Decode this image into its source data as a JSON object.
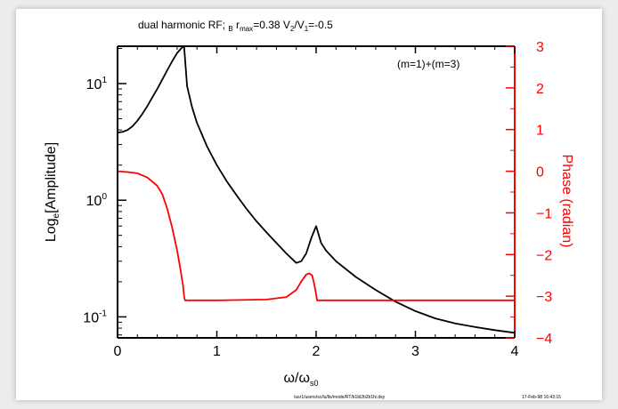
{
  "chart_data": {
    "type": "line",
    "title_parts": {
      "main": "dual harmonic RF; B",
      "main_sub": "B",
      "rmax": "r",
      "rmax_sub": "max",
      "rmax_value": "=0.38",
      "vratio_a": "V",
      "vratio_a_sub": "2",
      "vratio_b": "/V",
      "vratio_b_sub": "1",
      "vratio_value": "=-0.5"
    },
    "annotation": "(m=1)+(m=3)",
    "xlabel": "ω/ω",
    "xlabel_sub": "s0",
    "ylabel_left": "Log",
    "ylabel_left_sub": "e",
    "ylabel_left_rest": "[Amplitude]",
    "ylabel_right": "Phase (radian)",
    "footer_left": "/usr1/users/sc/lu/lls/mode/RT/b1bl2b2b1fz.dsy",
    "footer_right": "17-Feb-98 16:43:15",
    "xlim": [
      0,
      4
    ],
    "ylim_left_log10": [
      -1.18,
      1.32
    ],
    "ylim_right": [
      -4,
      3
    ],
    "x_ticks": [
      "0",
      "1",
      "2",
      "3",
      "4"
    ],
    "left_ticks": [
      {
        "base": "10",
        "exp": "1",
        "value": 10
      },
      {
        "base": "10",
        "exp": "0",
        "value": 1
      },
      {
        "base": "10",
        "exp": "-1",
        "value": 0.1
      }
    ],
    "right_ticks": [
      "3",
      "2",
      "1",
      "0",
      "-1",
      "-2",
      "-3",
      "-4"
    ],
    "series": [
      {
        "axis": "left",
        "color": "#000000",
        "x": [
          0,
          0.05,
          0.1,
          0.15,
          0.2,
          0.25,
          0.3,
          0.35,
          0.4,
          0.45,
          0.5,
          0.55,
          0.6,
          0.64,
          0.67,
          0.7,
          0.75,
          0.8,
          0.9,
          1.0,
          1.1,
          1.2,
          1.3,
          1.4,
          1.5,
          1.6,
          1.7,
          1.8,
          1.85,
          1.9,
          1.95,
          1.97,
          2.0,
          2.05,
          2.1,
          2.2,
          2.4,
          2.6,
          2.8,
          3.0,
          3.2,
          3.4,
          3.6,
          3.8,
          4.0
        ],
        "y": [
          3.8,
          3.85,
          4.0,
          4.3,
          4.8,
          5.5,
          6.4,
          7.6,
          9.0,
          10.8,
          13.0,
          15.5,
          18.3,
          20.0,
          21.0,
          9.5,
          6.3,
          4.6,
          2.9,
          2.0,
          1.45,
          1.1,
          0.84,
          0.66,
          0.53,
          0.43,
          0.35,
          0.29,
          0.3,
          0.35,
          0.47,
          0.52,
          0.6,
          0.43,
          0.37,
          0.3,
          0.22,
          0.17,
          0.135,
          0.112,
          0.097,
          0.088,
          0.082,
          0.077,
          0.073
        ]
      },
      {
        "axis": "right",
        "color": "#ff0000",
        "x": [
          0,
          0.1,
          0.2,
          0.3,
          0.4,
          0.45,
          0.5,
          0.55,
          0.6,
          0.63,
          0.66,
          0.67,
          0.68,
          1.0,
          1.5,
          1.7,
          1.8,
          1.85,
          1.9,
          1.93,
          1.96,
          1.98,
          2.0,
          2.01,
          2.5,
          3.0,
          3.5,
          4.0
        ],
        "y": [
          0.0,
          -0.02,
          -0.05,
          -0.15,
          -0.35,
          -0.55,
          -0.9,
          -1.35,
          -1.9,
          -2.3,
          -2.75,
          -3.0,
          -3.1,
          -3.1,
          -3.08,
          -3.02,
          -2.85,
          -2.65,
          -2.48,
          -2.45,
          -2.5,
          -2.7,
          -2.95,
          -3.1,
          -3.1,
          -3.1,
          -3.1,
          -3.1
        ]
      }
    ]
  }
}
